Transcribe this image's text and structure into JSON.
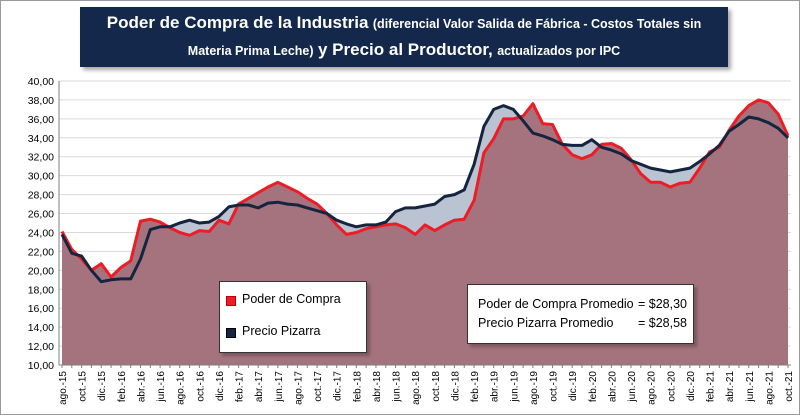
{
  "title": {
    "part1": "Poder de Compra de la Industria",
    "part2": "(diferencial Valor Salida de Fábrica - Costos Totales sin",
    "part3": "Materia Prima Leche)",
    "part4": "y Precio al Productor,",
    "part5": "actualizados por IPC"
  },
  "legend": {
    "poder": "Poder de Compra",
    "pizarra": "Precio Pizarra"
  },
  "averages": {
    "poder_label": "Poder de Compra Promedio",
    "poder_value": "= $28,30",
    "pizarra_label": "Precio Pizarra Promedio",
    "pizarra_value": "= $28,58"
  },
  "colors": {
    "poder_line": "#ee1c25",
    "pizarra_line": "#15253f",
    "fill_dark": "#a5737d",
    "fill_light": "#b9c3d1",
    "background": "#ffffff"
  },
  "chart_data": {
    "type": "area",
    "title": "",
    "xlabel": "",
    "ylabel": "",
    "ylim": [
      10,
      40
    ],
    "y_ticks": [
      "10,00",
      "12,00",
      "14,00",
      "16,00",
      "18,00",
      "20,00",
      "22,00",
      "24,00",
      "26,00",
      "28,00",
      "30,00",
      "32,00",
      "34,00",
      "36,00",
      "38,00",
      "40,00"
    ],
    "x_tick_labels": [
      "ago.-15",
      "oct.-15",
      "dic.-15",
      "feb.-16",
      "abr.-16",
      "jun.-16",
      "ago.-16",
      "oct.-16",
      "dic.-16",
      "feb.-17",
      "abr.-17",
      "jun.-17",
      "ago.-17",
      "oct.-17",
      "dic.-17",
      "feb.-18",
      "abr.-18",
      "jun.-18",
      "ago.-18",
      "oct.-18",
      "dic.-18",
      "feb.-19",
      "abr.-19",
      "jun.-19",
      "ago.-19",
      "oct.-19",
      "dic.-19",
      "feb.-20",
      "abr.-20",
      "jun.-20",
      "ago.-20",
      "oct.-20",
      "dic.-20",
      "feb.-21",
      "abr.-21",
      "jun.-21",
      "ago.-21",
      "oct.-21"
    ],
    "x_tick_every": 2,
    "months": [
      "ago.-15",
      "sep.-15",
      "oct.-15",
      "nov.-15",
      "dic.-15",
      "ene.-16",
      "feb.-16",
      "mar.-16",
      "abr.-16",
      "may.-16",
      "jun.-16",
      "jul.-16",
      "ago.-16",
      "sep.-16",
      "oct.-16",
      "nov.-16",
      "dic.-16",
      "ene.-17",
      "feb.-17",
      "mar.-17",
      "abr.-17",
      "may.-17",
      "jun.-17",
      "jul.-17",
      "ago.-17",
      "sep.-17",
      "oct.-17",
      "nov.-17",
      "dic.-17",
      "ene.-18",
      "feb.-18",
      "mar.-18",
      "abr.-18",
      "may.-18",
      "jun.-18",
      "jul.-18",
      "ago.-18",
      "sep.-18",
      "oct.-18",
      "nov.-18",
      "dic.-18",
      "ene.-19",
      "feb.-19",
      "mar.-19",
      "abr.-19",
      "may.-19",
      "jun.-19",
      "jul.-19",
      "ago.-19",
      "sep.-19",
      "oct.-19",
      "nov.-19",
      "dic.-19",
      "ene.-20",
      "feb.-20",
      "mar.-20",
      "abr.-20",
      "may.-20",
      "jun.-20",
      "jul.-20",
      "ago.-20",
      "sep.-20",
      "oct.-20",
      "nov.-20",
      "dic.-20",
      "ene.-21",
      "feb.-21",
      "mar.-21",
      "abr.-21",
      "may.-21",
      "jun.-21",
      "jul.-21",
      "ago.-21",
      "sep.-21",
      "oct.-21"
    ],
    "series": [
      {
        "name": "Poder de Compra",
        "values": [
          24.1,
          22.2,
          21.2,
          20.0,
          20.7,
          19.3,
          20.3,
          21.0,
          25.2,
          25.4,
          25.1,
          24.5,
          24.0,
          23.7,
          24.2,
          24.1,
          25.3,
          24.9,
          27.0,
          27.6,
          28.2,
          28.8,
          29.3,
          28.8,
          28.3,
          27.6,
          27.0,
          26.0,
          24.8,
          23.8,
          24.0,
          24.4,
          24.6,
          24.8,
          24.9,
          24.5,
          23.8,
          24.8,
          24.2,
          24.8,
          25.3,
          25.4,
          27.4,
          32.4,
          33.9,
          36.0,
          36.0,
          36.3,
          37.6,
          35.5,
          35.4,
          33.3,
          32.2,
          31.8,
          32.2,
          33.3,
          33.4,
          32.9,
          31.7,
          30.2,
          29.3,
          29.3,
          28.8,
          29.2,
          29.3,
          30.8,
          32.5,
          33.0,
          34.8,
          36.3,
          37.4,
          38.0,
          37.7,
          36.5,
          34.2
        ]
      },
      {
        "name": "Precio Pizarra",
        "values": [
          23.8,
          21.8,
          21.5,
          20.0,
          18.8,
          19.0,
          19.1,
          19.1,
          21.2,
          24.3,
          24.6,
          24.6,
          25.0,
          25.3,
          25.0,
          25.1,
          25.7,
          26.7,
          26.9,
          26.9,
          26.6,
          27.1,
          27.2,
          27.0,
          26.9,
          26.6,
          26.3,
          26.0,
          25.3,
          24.9,
          24.6,
          24.8,
          24.8,
          25.1,
          26.2,
          26.6,
          26.6,
          26.8,
          27.0,
          27.8,
          28.0,
          28.5,
          31.2,
          35.2,
          37.0,
          37.4,
          37.0,
          35.8,
          34.5,
          34.2,
          33.8,
          33.3,
          33.2,
          33.2,
          33.8,
          33.0,
          32.7,
          32.3,
          31.6,
          31.2,
          30.8,
          30.6,
          30.4,
          30.6,
          30.8,
          31.5,
          32.3,
          33.2,
          34.7,
          35.4,
          36.2,
          36.0,
          35.6,
          35.0,
          34.0
        ]
      }
    ],
    "grid": true,
    "legend_position": "bottom-left"
  }
}
